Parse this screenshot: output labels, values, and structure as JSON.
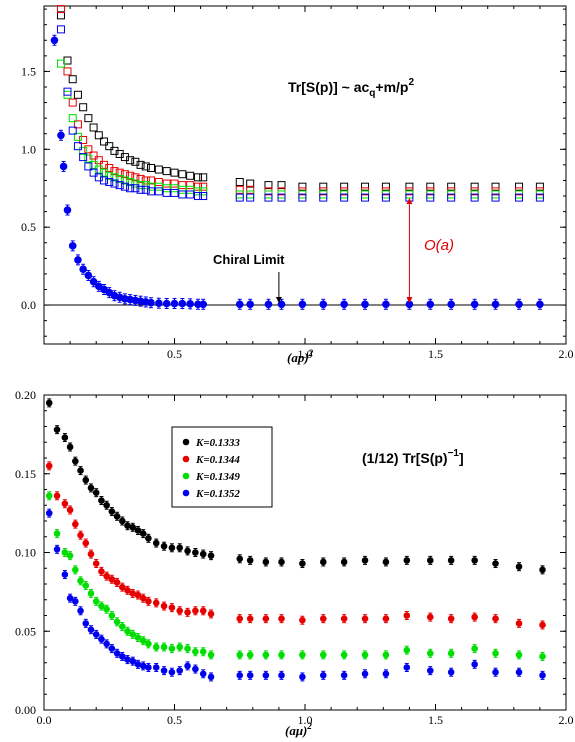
{
  "colors": {
    "black": "#000000",
    "red": "#e60000",
    "green": "#00dd00",
    "blue": "#0000ee"
  },
  "chart_data": [
    {
      "type": "scatter",
      "title": "Tr[S(p)] ~ ac_q+m/p^2",
      "title_parts": {
        "main": "Tr[S(p)] ~ ac",
        "sub": "q",
        "mid": "+m/p",
        "sup": "2"
      },
      "xlabel": "(ap)",
      "xlabel_sup": "2",
      "ylabel": "",
      "xlim": [
        0.0,
        2.0
      ],
      "ylim": [
        -0.25,
        1.92
      ],
      "xticks": [
        "0.5",
        "1.0",
        "1.5",
        "2.0"
      ],
      "xtick_values": [
        0.5,
        1.0,
        1.5,
        2.0
      ],
      "yticks": [
        "0.0",
        "0.5",
        "1.0",
        "1.5"
      ],
      "ytick_values": [
        0.0,
        0.5,
        1.0,
        1.5
      ],
      "zero_line": 0.0,
      "annotations": {
        "chiral_limit": {
          "text": "Chiral Limit",
          "arrow_x": 0.9
        },
        "order_a": {
          "text": "O(a)",
          "arrow_x": 1.4,
          "from": 0.0,
          "to": 0.7
        }
      },
      "series": [
        {
          "marker": "open-square",
          "color": "#000000",
          "x": [
            0.065,
            0.09,
            0.11,
            0.13,
            0.15,
            0.17,
            0.19,
            0.21,
            0.23,
            0.25,
            0.27,
            0.29,
            0.31,
            0.33,
            0.35,
            0.37,
            0.39,
            0.41,
            0.44,
            0.47,
            0.5,
            0.53,
            0.56,
            0.59,
            0.61,
            0.75,
            0.79,
            0.86,
            0.91,
            0.99,
            1.07,
            1.15,
            1.23,
            1.31,
            1.4,
            1.48,
            1.56,
            1.65,
            1.73,
            1.82,
            1.9
          ],
          "y": [
            1.86,
            1.57,
            1.45,
            1.35,
            1.27,
            1.2,
            1.14,
            1.09,
            1.05,
            1.02,
            0.99,
            0.97,
            0.95,
            0.93,
            0.92,
            0.9,
            0.89,
            0.88,
            0.87,
            0.86,
            0.85,
            0.84,
            0.83,
            0.82,
            0.82,
            0.79,
            0.78,
            0.77,
            0.77,
            0.76,
            0.76,
            0.76,
            0.76,
            0.76,
            0.76,
            0.76,
            0.76,
            0.76,
            0.76,
            0.76,
            0.76
          ]
        },
        {
          "marker": "open-square",
          "color": "#e60000",
          "x": [
            0.065,
            0.09,
            0.11,
            0.13,
            0.15,
            0.17,
            0.19,
            0.21,
            0.23,
            0.25,
            0.27,
            0.29,
            0.31,
            0.33,
            0.35,
            0.37,
            0.39,
            0.41,
            0.44,
            0.47,
            0.5,
            0.53,
            0.56,
            0.59,
            0.61,
            0.75,
            0.79,
            0.86,
            0.91,
            0.99,
            1.07,
            1.15,
            1.23,
            1.31,
            1.4,
            1.48,
            1.56,
            1.65,
            1.73,
            1.82,
            1.9
          ],
          "y": [
            1.9,
            1.5,
            1.3,
            1.16,
            1.06,
            1.0,
            0.96,
            0.93,
            0.9,
            0.88,
            0.86,
            0.85,
            0.84,
            0.83,
            0.82,
            0.81,
            0.8,
            0.8,
            0.79,
            0.78,
            0.78,
            0.77,
            0.77,
            0.76,
            0.76,
            0.74,
            0.74,
            0.73,
            0.73,
            0.73,
            0.73,
            0.73,
            0.73,
            0.73,
            0.73,
            0.73,
            0.73,
            0.73,
            0.73,
            0.73,
            0.73
          ]
        },
        {
          "marker": "open-square",
          "color": "#00dd00",
          "x": [
            0.065,
            0.09,
            0.11,
            0.13,
            0.15,
            0.17,
            0.19,
            0.21,
            0.23,
            0.25,
            0.27,
            0.29,
            0.31,
            0.33,
            0.35,
            0.37,
            0.39,
            0.41,
            0.44,
            0.47,
            0.5,
            0.53,
            0.56,
            0.59,
            0.61,
            0.75,
            0.79,
            0.86,
            0.91,
            0.99,
            1.07,
            1.15,
            1.23,
            1.31,
            1.4,
            1.48,
            1.56,
            1.65,
            1.73,
            1.82,
            1.9
          ],
          "y": [
            1.55,
            1.35,
            1.2,
            1.08,
            0.99,
            0.94,
            0.9,
            0.87,
            0.85,
            0.83,
            0.82,
            0.81,
            0.8,
            0.79,
            0.78,
            0.77,
            0.77,
            0.76,
            0.76,
            0.75,
            0.75,
            0.74,
            0.74,
            0.73,
            0.73,
            0.71,
            0.71,
            0.71,
            0.71,
            0.71,
            0.71,
            0.71,
            0.71,
            0.71,
            0.71,
            0.71,
            0.71,
            0.71,
            0.71,
            0.71,
            0.71
          ]
        },
        {
          "marker": "open-square",
          "color": "#0000ee",
          "x": [
            0.065,
            0.09,
            0.11,
            0.13,
            0.15,
            0.17,
            0.19,
            0.21,
            0.23,
            0.25,
            0.27,
            0.29,
            0.31,
            0.33,
            0.35,
            0.37,
            0.39,
            0.41,
            0.44,
            0.47,
            0.5,
            0.53,
            0.56,
            0.59,
            0.61,
            0.75,
            0.79,
            0.86,
            0.91,
            0.99,
            1.07,
            1.15,
            1.23,
            1.31,
            1.4,
            1.48,
            1.56,
            1.65,
            1.73,
            1.82,
            1.9
          ],
          "y": [
            1.77,
            1.37,
            1.12,
            1.02,
            0.95,
            0.89,
            0.85,
            0.82,
            0.8,
            0.79,
            0.78,
            0.77,
            0.76,
            0.75,
            0.75,
            0.74,
            0.74,
            0.73,
            0.73,
            0.72,
            0.72,
            0.71,
            0.71,
            0.7,
            0.7,
            0.69,
            0.69,
            0.69,
            0.69,
            0.69,
            0.69,
            0.69,
            0.69,
            0.69,
            0.69,
            0.69,
            0.69,
            0.69,
            0.69,
            0.69,
            0.69
          ]
        },
        {
          "marker": "filled-circle",
          "color": "#0000ee",
          "x": [
            0.04,
            0.065,
            0.075,
            0.09,
            0.11,
            0.13,
            0.15,
            0.17,
            0.19,
            0.21,
            0.23,
            0.25,
            0.27,
            0.29,
            0.31,
            0.33,
            0.35,
            0.37,
            0.39,
            0.41,
            0.44,
            0.47,
            0.5,
            0.53,
            0.56,
            0.59,
            0.61,
            0.75,
            0.79,
            0.86,
            0.91,
            0.99,
            1.07,
            1.15,
            1.23,
            1.31,
            1.4,
            1.48,
            1.56,
            1.65,
            1.73,
            1.82,
            1.9
          ],
          "y": [
            1.7,
            1.09,
            0.89,
            0.61,
            0.38,
            0.29,
            0.23,
            0.19,
            0.15,
            0.12,
            0.1,
            0.08,
            0.06,
            0.05,
            0.04,
            0.035,
            0.03,
            0.025,
            0.02,
            0.015,
            0.012,
            0.01,
            0.01,
            0.01,
            0.008,
            0.005,
            0.005,
            0.005,
            0.005,
            0.005,
            0.005,
            0.005,
            0.005,
            0.005,
            0.005,
            0.005,
            0.005,
            0.005,
            0.005,
            0.005,
            0.005,
            0.005,
            0.005
          ]
        }
      ]
    },
    {
      "type": "scatter",
      "title": "(1/12) Tr[S(p)^-1]",
      "title_parts": {
        "main": "(1/12) Tr[S(p)",
        "sup": "−1",
        "end": "]"
      },
      "xlabel": "(aμ)",
      "xlabel_sup": "2",
      "ylabel": "",
      "xlim": [
        0.0,
        2.0
      ],
      "ylim": [
        0.0,
        0.2
      ],
      "xticks": [
        "0.0",
        "0.5",
        "1.0",
        "1.5",
        "2.0"
      ],
      "xtick_values": [
        0.0,
        0.5,
        1.0,
        1.5,
        2.0
      ],
      "yticks": [
        "0.00",
        "0.05",
        "0.10",
        "0.15",
        "0.20"
      ],
      "ytick_values": [
        0.0,
        0.05,
        0.1,
        0.15,
        0.2
      ],
      "legend": {
        "position": "top-left",
        "entries": [
          {
            "label": "K=0.1333",
            "color": "#000000"
          },
          {
            "label": "K=0.1344",
            "color": "#e60000"
          },
          {
            "label": "K=0.1349",
            "color": "#00dd00"
          },
          {
            "label": "K=0.1352",
            "color": "#0000ee"
          }
        ]
      },
      "series": [
        {
          "name": "K=0.1333",
          "color": "#000000",
          "x": [
            0.02,
            0.05,
            0.08,
            0.1,
            0.12,
            0.14,
            0.16,
            0.18,
            0.2,
            0.22,
            0.24,
            0.26,
            0.28,
            0.3,
            0.32,
            0.34,
            0.36,
            0.38,
            0.4,
            0.43,
            0.46,
            0.49,
            0.52,
            0.55,
            0.58,
            0.61,
            0.64,
            0.75,
            0.79,
            0.85,
            0.91,
            0.99,
            1.07,
            1.15,
            1.23,
            1.31,
            1.39,
            1.48,
            1.56,
            1.65,
            1.73,
            1.82,
            1.91
          ],
          "y": [
            0.195,
            0.178,
            0.173,
            0.167,
            0.158,
            0.152,
            0.146,
            0.141,
            0.138,
            0.133,
            0.13,
            0.126,
            0.123,
            0.12,
            0.117,
            0.116,
            0.114,
            0.112,
            0.109,
            0.106,
            0.104,
            0.103,
            0.103,
            0.101,
            0.1,
            0.099,
            0.098,
            0.096,
            0.095,
            0.094,
            0.094,
            0.093,
            0.094,
            0.094,
            0.095,
            0.094,
            0.095,
            0.095,
            0.095,
            0.095,
            0.093,
            0.091,
            0.089
          ]
        },
        {
          "name": "K=0.1344",
          "color": "#e60000",
          "x": [
            0.02,
            0.05,
            0.08,
            0.1,
            0.12,
            0.14,
            0.16,
            0.18,
            0.2,
            0.22,
            0.24,
            0.26,
            0.28,
            0.3,
            0.32,
            0.34,
            0.36,
            0.38,
            0.4,
            0.43,
            0.46,
            0.49,
            0.52,
            0.55,
            0.58,
            0.61,
            0.64,
            0.75,
            0.79,
            0.85,
            0.91,
            0.99,
            1.07,
            1.15,
            1.23,
            1.31,
            1.39,
            1.48,
            1.56,
            1.65,
            1.73,
            1.82,
            1.91
          ],
          "y": [
            0.155,
            0.136,
            0.131,
            0.127,
            0.118,
            0.111,
            0.106,
            0.099,
            0.093,
            0.088,
            0.085,
            0.083,
            0.081,
            0.078,
            0.076,
            0.074,
            0.073,
            0.071,
            0.069,
            0.068,
            0.066,
            0.065,
            0.063,
            0.062,
            0.063,
            0.063,
            0.061,
            0.058,
            0.058,
            0.058,
            0.058,
            0.057,
            0.058,
            0.058,
            0.058,
            0.058,
            0.06,
            0.059,
            0.058,
            0.059,
            0.058,
            0.055,
            0.054
          ]
        },
        {
          "name": "K=0.1349",
          "color": "#00dd00",
          "x": [
            0.02,
            0.05,
            0.08,
            0.1,
            0.12,
            0.14,
            0.16,
            0.18,
            0.2,
            0.22,
            0.24,
            0.26,
            0.28,
            0.3,
            0.32,
            0.34,
            0.36,
            0.38,
            0.4,
            0.43,
            0.46,
            0.49,
            0.52,
            0.55,
            0.58,
            0.61,
            0.64,
            0.75,
            0.79,
            0.85,
            0.91,
            0.99,
            1.07,
            1.15,
            1.23,
            1.31,
            1.39,
            1.48,
            1.56,
            1.65,
            1.73,
            1.82,
            1.91
          ],
          "y": [
            0.136,
            0.112,
            0.1,
            0.098,
            0.089,
            0.082,
            0.079,
            0.074,
            0.069,
            0.066,
            0.064,
            0.06,
            0.056,
            0.053,
            0.05,
            0.048,
            0.046,
            0.044,
            0.042,
            0.04,
            0.04,
            0.039,
            0.04,
            0.039,
            0.037,
            0.037,
            0.035,
            0.035,
            0.035,
            0.035,
            0.035,
            0.035,
            0.035,
            0.035,
            0.035,
            0.035,
            0.038,
            0.036,
            0.036,
            0.039,
            0.036,
            0.035,
            0.034
          ]
        },
        {
          "name": "K=0.1352",
          "color": "#0000ee",
          "x": [
            0.02,
            0.05,
            0.08,
            0.1,
            0.12,
            0.14,
            0.16,
            0.18,
            0.2,
            0.22,
            0.24,
            0.26,
            0.28,
            0.3,
            0.32,
            0.34,
            0.36,
            0.38,
            0.4,
            0.43,
            0.46,
            0.49,
            0.52,
            0.55,
            0.58,
            0.61,
            0.64,
            0.75,
            0.79,
            0.85,
            0.91,
            0.99,
            1.07,
            1.15,
            1.23,
            1.31,
            1.39,
            1.48,
            1.56,
            1.65,
            1.73,
            1.82,
            1.91
          ],
          "y": [
            0.125,
            0.102,
            0.086,
            0.071,
            0.069,
            0.063,
            0.055,
            0.051,
            0.048,
            0.045,
            0.042,
            0.039,
            0.036,
            0.034,
            0.032,
            0.031,
            0.029,
            0.028,
            0.027,
            0.027,
            0.025,
            0.024,
            0.025,
            0.028,
            0.026,
            0.023,
            0.021,
            0.022,
            0.022,
            0.022,
            0.022,
            0.021,
            0.022,
            0.022,
            0.023,
            0.023,
            0.027,
            0.025,
            0.024,
            0.029,
            0.024,
            0.024,
            0.022
          ]
        }
      ]
    }
  ]
}
